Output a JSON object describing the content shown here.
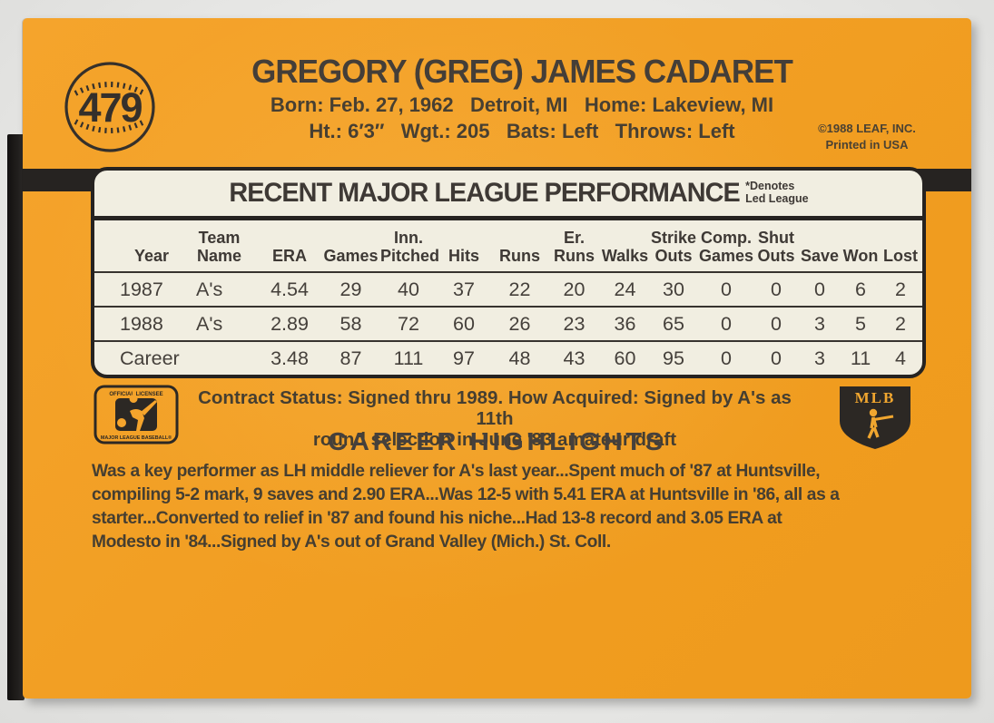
{
  "colors": {
    "card_orange": "#F5A42C",
    "cream": "#F1EEE1",
    "ink": "#403A35",
    "black": "#262321",
    "scan_bg": "#E8E8E6"
  },
  "header": {
    "card_number": "479",
    "player_name": "GREGORY (GREG) JAMES CADARET",
    "bio_line1": "Born: Feb. 27, 1962   Detroit, MI   Home: Lakeview, MI",
    "bio_line2": "Ht.: 6′3″   Wgt.: 205   Bats: Left   Throws: Left",
    "copyright": "©1988 LEAF, INC.\nPrinted in USA"
  },
  "stats": {
    "title": "RECENT MAJOR LEAGUE PERFORMANCE",
    "note": "*Denotes\nLed League",
    "columns": [
      {
        "l1": "",
        "l2": "Year"
      },
      {
        "l1": "Team",
        "l2": "Name"
      },
      {
        "l1": "",
        "l2": "ERA"
      },
      {
        "l1": "",
        "l2": "Games"
      },
      {
        "l1": "Inn.",
        "l2": "Pitched"
      },
      {
        "l1": "",
        "l2": "Hits"
      },
      {
        "l1": "",
        "l2": "Runs"
      },
      {
        "l1": "Er.",
        "l2": "Runs"
      },
      {
        "l1": "",
        "l2": "Walks"
      },
      {
        "l1": "Strike",
        "l2": "Outs"
      },
      {
        "l1": "Comp.",
        "l2": "Games"
      },
      {
        "l1": "Shut",
        "l2": "Outs"
      },
      {
        "l1": "",
        "l2": "Save"
      },
      {
        "l1": "",
        "l2": "Won"
      },
      {
        "l1": "",
        "l2": "Lost"
      }
    ],
    "rows": [
      [
        "1987",
        "A's",
        "4.54",
        "29",
        "40",
        "37",
        "22",
        "20",
        "24",
        "30",
        "0",
        "0",
        "0",
        "6",
        "2"
      ],
      [
        "1988",
        "A's",
        "2.89",
        "58",
        "72",
        "60",
        "26",
        "23",
        "36",
        "65",
        "0",
        "0",
        "3",
        "5",
        "2"
      ],
      [
        "Career",
        "",
        "3.48",
        "87",
        "111",
        "97",
        "48",
        "43",
        "60",
        "95",
        "0",
        "0",
        "3",
        "11",
        "4"
      ]
    ]
  },
  "contract": {
    "text": "Contract Status: Signed thru 1989. How Acquired: Signed by A's as 11th\nround selection in June '83 amateur draft"
  },
  "logos": {
    "left_top_label": "OFFICIAL LICENSEE",
    "left_bottom_label": "MAJOR LEAGUE BASEBALL®",
    "right_label": "MLB"
  },
  "highlights": {
    "heading": "CAREER HIGHLIGHTS",
    "body": "Was a key performer as LH middle reliever for A's last year...Spent much of '87 at Huntsville,\ncompiling 5-2 mark, 9 saves and 2.90 ERA...Was 12-5 with 5.41 ERA at Huntsville in '86, all as a\nstarter...Converted to relief in '87 and found his niche...Had 13-8 record and 3.05 ERA at\nModesto in '84...Signed by A's out of Grand Valley (Mich.) St. Coll."
  }
}
